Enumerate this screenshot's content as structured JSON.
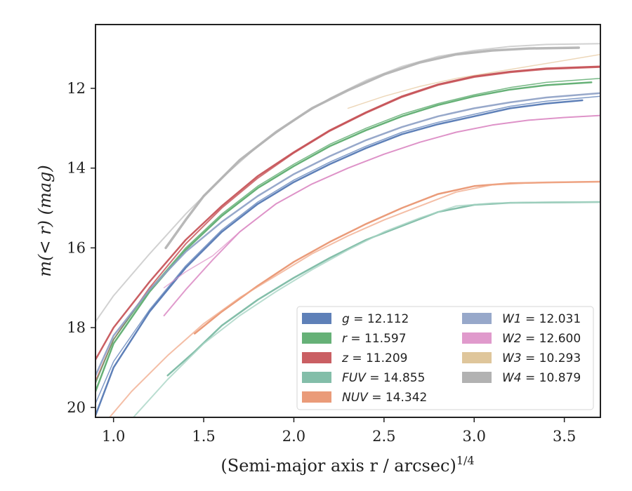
{
  "chart_data": {
    "type": "line",
    "xlabel": "(Semi-major axis r / arcsec)",
    "xlabel_superscript": "1/4",
    "ylabel": "m(< r) (mag)",
    "xlim": [
      0.9,
      3.7
    ],
    "ylim": [
      20.25,
      10.4
    ],
    "y_inverted": true,
    "xticks": [
      1.0,
      1.5,
      2.0,
      2.5,
      3.0,
      3.5
    ],
    "xtick_labels": [
      "1.0",
      "1.5",
      "2.0",
      "2.5",
      "3.0",
      "3.5"
    ],
    "yticks": [
      12,
      14,
      16,
      18,
      20
    ],
    "ytick_labels": [
      "12",
      "14",
      "16",
      "18",
      "20"
    ],
    "grid": false,
    "legend_position": "lower-right",
    "legend": [
      {
        "band": "g",
        "value": "12.112",
        "color": "#4c72b0"
      },
      {
        "band": "r",
        "value": "11.597",
        "color": "#55a868"
      },
      {
        "band": "z",
        "value": "11.209",
        "color": "#c44e52"
      },
      {
        "band": "FUV",
        "value": "14.855",
        "color": "#76b7a0"
      },
      {
        "band": "NUV",
        "value": "14.342",
        "color": "#e8906a"
      },
      {
        "band": "W1",
        "value": "12.031",
        "color": "#8c9ec4"
      },
      {
        "band": "W2",
        "value": "12.600",
        "color": "#dd8fc6"
      },
      {
        "band": "W3",
        "value": "10.293",
        "color": "#dcc090"
      },
      {
        "band": "W4",
        "value": "10.879",
        "color": "#aaaaaa"
      }
    ],
    "series": [
      {
        "name": "W3",
        "color": "#e8cda8",
        "width": 1.5,
        "opacity": 0.8,
        "x": [
          2.3,
          2.5,
          2.7,
          2.9,
          3.1,
          3.3,
          3.5,
          3.7
        ],
        "y": [
          12.5,
          12.2,
          11.95,
          11.75,
          11.6,
          11.45,
          11.3,
          11.15
        ]
      },
      {
        "name": "W4",
        "color": "#cccccc",
        "width": 2.0,
        "opacity": 0.9,
        "x": [
          0.9,
          1.0,
          1.2,
          1.4,
          1.6,
          1.8,
          2.0,
          2.2,
          2.4,
          2.6,
          2.8,
          3.0,
          3.2,
          3.4,
          3.7
        ],
        "y": [
          17.85,
          17.2,
          16.15,
          15.15,
          14.25,
          13.45,
          12.8,
          12.25,
          11.8,
          11.45,
          11.2,
          11.05,
          10.95,
          10.9,
          10.88
        ]
      },
      {
        "name": "W4",
        "color": "#b0b0b0",
        "width": 3.5,
        "opacity": 0.9,
        "x": [
          1.29,
          1.4,
          1.5,
          1.7,
          1.9,
          2.1,
          2.3,
          2.5,
          2.7,
          2.9,
          3.1,
          3.3,
          3.58
        ],
        "y": [
          16.0,
          15.3,
          14.7,
          13.8,
          13.1,
          12.5,
          12.05,
          11.65,
          11.35,
          11.15,
          11.05,
          11.0,
          10.98
        ]
      },
      {
        "name": "z",
        "color": "#c44e52",
        "width": 2.5,
        "opacity": 0.9,
        "x": [
          0.9,
          1.0,
          1.2,
          1.4,
          1.6,
          1.8,
          2.0,
          2.2,
          2.4,
          2.6,
          2.8,
          3.0,
          3.2,
          3.4,
          3.7
        ],
        "y": [
          18.8,
          18.0,
          16.85,
          15.8,
          14.95,
          14.2,
          13.6,
          13.05,
          12.6,
          12.2,
          11.9,
          11.7,
          11.58,
          11.5,
          11.45
        ]
      },
      {
        "name": "z",
        "color": "#c44e52",
        "width": 2.0,
        "opacity": 0.8,
        "x": [
          0.9,
          1.0,
          1.2,
          1.4,
          1.6,
          1.8,
          2.0,
          2.2,
          2.4,
          2.6,
          2.8,
          3.0,
          3.2,
          3.4,
          3.7
        ],
        "y": [
          19.35,
          18.3,
          17.0,
          15.9,
          15.0,
          14.25,
          13.62,
          13.07,
          12.62,
          12.22,
          11.92,
          11.72,
          11.6,
          11.52,
          11.47
        ]
      },
      {
        "name": "r",
        "color": "#55a868",
        "width": 2.5,
        "opacity": 0.9,
        "x": [
          0.9,
          1.0,
          1.2,
          1.4,
          1.6,
          1.8,
          2.0,
          2.2,
          2.4,
          2.6,
          2.8,
          3.0,
          3.2,
          3.4,
          3.65
        ],
        "y": [
          19.6,
          18.4,
          17.1,
          16.05,
          15.2,
          14.5,
          13.95,
          13.45,
          13.05,
          12.7,
          12.42,
          12.2,
          12.03,
          11.92,
          11.85
        ]
      },
      {
        "name": "r",
        "color": "#55a868",
        "width": 1.5,
        "opacity": 0.8,
        "x": [
          0.9,
          1.0,
          1.2,
          1.4,
          1.6,
          1.8,
          2.0,
          2.2,
          2.4,
          2.6,
          2.8,
          3.0,
          3.2,
          3.4,
          3.7
        ],
        "y": [
          19.4,
          18.3,
          17.05,
          16.0,
          15.15,
          14.45,
          13.9,
          13.4,
          13.0,
          12.65,
          12.38,
          12.16,
          11.98,
          11.85,
          11.75
        ]
      },
      {
        "name": "W1",
        "color": "#8c9ec4",
        "width": 2.5,
        "opacity": 0.9,
        "x": [
          0.9,
          1.0,
          1.2,
          1.4,
          1.6,
          1.8,
          2.0,
          2.2,
          2.4,
          2.6,
          2.8,
          3.0,
          3.2,
          3.4,
          3.7
        ],
        "y": [
          19.2,
          18.2,
          17.05,
          16.1,
          15.35,
          14.7,
          14.15,
          13.7,
          13.3,
          12.97,
          12.7,
          12.5,
          12.35,
          12.23,
          12.12
        ]
      },
      {
        "name": "g",
        "color": "#4c72b0",
        "width": 2.5,
        "opacity": 0.9,
        "x": [
          0.9,
          1.0,
          1.2,
          1.4,
          1.6,
          1.8,
          2.0,
          2.2,
          2.4,
          2.6,
          2.8,
          3.0,
          3.2,
          3.4,
          3.6
        ],
        "y": [
          20.2,
          19.0,
          17.6,
          16.5,
          15.6,
          14.9,
          14.35,
          13.9,
          13.5,
          13.15,
          12.9,
          12.7,
          12.5,
          12.38,
          12.3
        ]
      },
      {
        "name": "g",
        "color": "#4c72b0",
        "width": 1.5,
        "opacity": 0.7,
        "x": [
          0.9,
          1.0,
          1.2,
          1.4,
          1.6,
          1.8,
          2.0,
          2.2,
          2.4,
          2.6,
          2.8,
          3.0,
          3.2,
          3.4,
          3.7
        ],
        "y": [
          19.9,
          18.85,
          17.55,
          16.45,
          15.55,
          14.85,
          14.3,
          13.85,
          13.45,
          13.1,
          12.85,
          12.65,
          12.45,
          12.32,
          12.2
        ]
      },
      {
        "name": "W2",
        "color": "#dd8fc6",
        "width": 2.0,
        "opacity": 0.9,
        "x": [
          1.28,
          1.4,
          1.55,
          1.7,
          1.9,
          2.1,
          2.3,
          2.5,
          2.7,
          2.9,
          3.1,
          3.3,
          3.5,
          3.7
        ],
        "y": [
          17.7,
          17.05,
          16.3,
          15.6,
          14.9,
          14.4,
          14.0,
          13.65,
          13.35,
          13.1,
          12.92,
          12.8,
          12.73,
          12.68
        ]
      },
      {
        "name": "W2",
        "color": "#dd8fc6",
        "width": 1.5,
        "opacity": 0.7,
        "x": [
          1.28,
          1.4,
          1.55,
          1.7,
          1.9,
          2.1,
          2.3,
          2.5,
          2.7,
          2.9,
          3.1,
          3.3,
          3.5,
          3.7
        ],
        "y": [
          17.0,
          16.6,
          16.2,
          15.6,
          14.9,
          14.4,
          14.0,
          13.65,
          13.35,
          13.1,
          12.92,
          12.8,
          12.73,
          12.68
        ]
      },
      {
        "name": "NUV",
        "color": "#e8906a",
        "width": 2.5,
        "opacity": 0.9,
        "x": [
          1.45,
          1.6,
          1.8,
          2.0,
          2.2,
          2.4,
          2.6,
          2.8,
          3.0,
          3.2,
          3.4,
          3.7
        ],
        "y": [
          18.15,
          17.6,
          16.95,
          16.35,
          15.85,
          15.4,
          15.0,
          14.65,
          14.45,
          14.38,
          14.36,
          14.34
        ]
      },
      {
        "name": "NUV",
        "color": "#f0a888",
        "width": 2.0,
        "opacity": 0.75,
        "x": [
          0.95,
          1.1,
          1.3,
          1.5,
          1.7,
          1.9,
          2.1,
          2.3,
          2.5,
          2.7,
          2.9,
          3.1,
          3.3,
          3.5,
          3.7
        ],
        "y": [
          20.4,
          19.6,
          18.7,
          17.9,
          17.25,
          16.7,
          16.15,
          15.7,
          15.3,
          14.95,
          14.6,
          14.42,
          14.37,
          14.35,
          14.34
        ]
      },
      {
        "name": "FUV",
        "color": "#76b7a0",
        "width": 2.5,
        "opacity": 0.9,
        "x": [
          1.3,
          1.45,
          1.6,
          1.8,
          2.0,
          2.2,
          2.4,
          2.6,
          2.8,
          3.0,
          3.2,
          3.4,
          3.7
        ],
        "y": [
          19.2,
          18.6,
          17.95,
          17.3,
          16.75,
          16.25,
          15.8,
          15.45,
          15.1,
          14.92,
          14.87,
          14.86,
          14.85
        ]
      },
      {
        "name": "FUV",
        "color": "#a8d5c4",
        "width": 2.0,
        "opacity": 0.8,
        "x": [
          1.1,
          1.3,
          1.5,
          1.7,
          1.9,
          2.1,
          2.3,
          2.5,
          2.7,
          2.9,
          3.1,
          3.3,
          3.5,
          3.7
        ],
        "y": [
          20.3,
          19.3,
          18.4,
          17.7,
          17.1,
          16.55,
          16.05,
          15.6,
          15.25,
          14.95,
          14.88,
          14.86,
          14.85,
          14.85
        ]
      }
    ]
  }
}
